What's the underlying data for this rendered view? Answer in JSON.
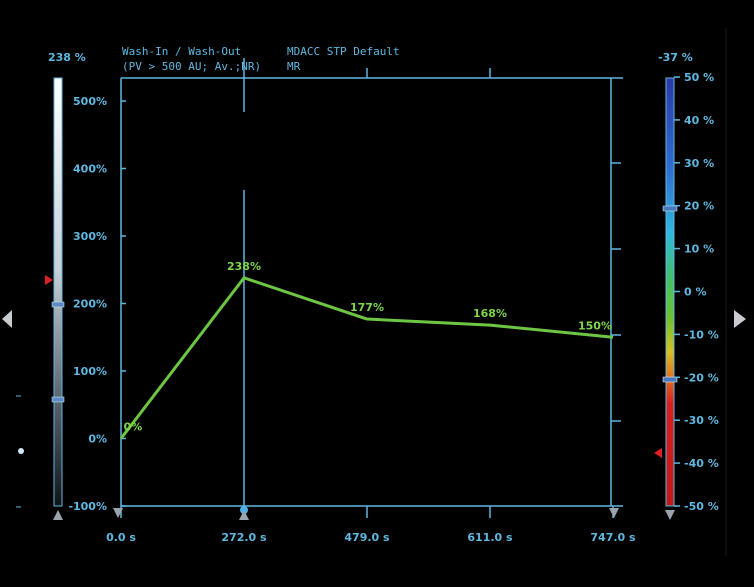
{
  "header": {
    "mode_line1": "Wash-In / Wash-Out",
    "mode_line2": "(PV > 500 AU; Av.;NR)",
    "protocol_line1": "MDACC STP Default",
    "protocol_line2": "MR"
  },
  "left_scale": {
    "top_value": "238 %"
  },
  "right_scale": {
    "top_value": "-37 %",
    "ticks": [
      "50 %",
      "40 %",
      "30 %",
      "20 %",
      "10 %",
      "0 %",
      "-10 %",
      "-20 %",
      "-30 %",
      "-40 %",
      "-50 %"
    ]
  },
  "colors": {
    "axis": "#5fb8e0",
    "curve": "#6cc644",
    "label": "#7fd64a",
    "background": "#000000",
    "marker": "#e02020"
  },
  "chart_data": {
    "type": "line",
    "x": [
      0.0,
      272.0,
      479.0,
      611.0,
      747.0
    ],
    "x_tick_labels": [
      "0.0 s",
      "272.0 s",
      "479.0 s",
      "611.0 s",
      "747.0 s"
    ],
    "y_tick_labels": [
      "500%",
      "400%",
      "300%",
      "200%",
      "100%",
      "0%",
      "-100%"
    ],
    "y_ticks": [
      500,
      400,
      300,
      200,
      100,
      0,
      -100
    ],
    "ylim": [
      -100,
      530
    ],
    "xlim": [
      0,
      747
    ],
    "series": [
      {
        "values": [
          0,
          238,
          177,
          168,
          150
        ],
        "point_labels": [
          "0%",
          "238%",
          "177%",
          "168%",
          "150%"
        ]
      }
    ],
    "grid": false
  }
}
